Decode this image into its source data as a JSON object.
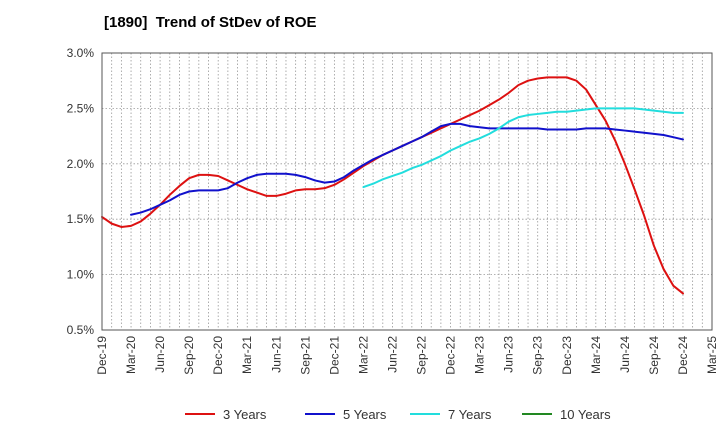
{
  "chart_data": {
    "type": "line",
    "title": "[1890]  Trend of StDev of ROE",
    "xlabel": "",
    "ylabel": "",
    "ylim": [
      0.5,
      3.0
    ],
    "yticks": [
      "0.5%",
      "1.0%",
      "1.5%",
      "2.0%",
      "2.5%",
      "3.0%"
    ],
    "ytick_values": [
      0.5,
      1.0,
      1.5,
      2.0,
      2.5,
      3.0
    ],
    "xticks": [
      "Dec-19",
      "Mar-20",
      "Jun-20",
      "Sep-20",
      "Dec-20",
      "Mar-21",
      "Jun-21",
      "Sep-21",
      "Dec-21",
      "Mar-22",
      "Jun-22",
      "Sep-22",
      "Dec-22",
      "Mar-23",
      "Jun-23",
      "Sep-23",
      "Dec-23",
      "Mar-24",
      "Jun-24",
      "Sep-24",
      "Dec-24",
      "Mar-25"
    ],
    "grid": true,
    "legend_position": "bottom",
    "series": [
      {
        "name": "3 Years",
        "color": "#dd1111",
        "start": "Dec-19",
        "values": [
          1.52,
          1.46,
          1.43,
          1.44,
          1.48,
          1.55,
          1.63,
          1.72,
          1.8,
          1.87,
          1.9,
          1.9,
          1.89,
          1.85,
          1.81,
          1.77,
          1.74,
          1.71,
          1.71,
          1.73,
          1.76,
          1.77,
          1.77,
          1.78,
          1.81,
          1.86,
          1.92,
          1.98,
          2.03,
          2.08,
          2.12,
          2.16,
          2.2,
          2.24,
          2.28,
          2.32,
          2.36,
          2.4,
          2.44,
          2.48,
          2.53,
          2.58,
          2.64,
          2.71,
          2.75,
          2.77,
          2.78,
          2.78,
          2.78,
          2.75,
          2.67,
          2.53,
          2.39,
          2.21,
          2.0,
          1.77,
          1.53,
          1.26,
          1.05,
          0.9,
          0.83
        ]
      },
      {
        "name": "5 Years",
        "color": "#1111cc",
        "start": "Dec-19",
        "values": [
          null,
          null,
          null,
          1.54,
          1.56,
          1.59,
          1.63,
          1.67,
          1.72,
          1.75,
          1.76,
          1.76,
          1.76,
          1.78,
          1.83,
          1.87,
          1.9,
          1.91,
          1.91,
          1.91,
          1.9,
          1.88,
          1.85,
          1.83,
          1.84,
          1.88,
          1.94,
          1.99,
          2.04,
          2.08,
          2.12,
          2.16,
          2.2,
          2.24,
          2.29,
          2.34,
          2.36,
          2.36,
          2.34,
          2.33,
          2.32,
          2.32,
          2.32,
          2.32,
          2.32,
          2.32,
          2.31,
          2.31,
          2.31,
          2.31,
          2.32,
          2.32,
          2.32,
          2.31,
          2.3,
          2.29,
          2.28,
          2.27,
          2.26,
          2.24,
          2.22
        ]
      },
      {
        "name": "7 Years",
        "color": "#22dddd",
        "start": "Dec-19",
        "values": [
          null,
          null,
          null,
          null,
          null,
          null,
          null,
          null,
          null,
          null,
          null,
          null,
          null,
          null,
          null,
          null,
          null,
          null,
          null,
          null,
          null,
          null,
          null,
          null,
          null,
          null,
          null,
          1.79,
          1.82,
          1.86,
          1.89,
          1.92,
          1.96,
          1.99,
          2.03,
          2.07,
          2.12,
          2.16,
          2.2,
          2.23,
          2.27,
          2.32,
          2.38,
          2.42,
          2.44,
          2.45,
          2.46,
          2.47,
          2.47,
          2.48,
          2.49,
          2.5,
          2.5,
          2.5,
          2.5,
          2.5,
          2.49,
          2.48,
          2.47,
          2.46,
          2.46
        ]
      },
      {
        "name": "10 Years",
        "color": "#228822",
        "start": "Dec-19",
        "values": []
      }
    ]
  }
}
